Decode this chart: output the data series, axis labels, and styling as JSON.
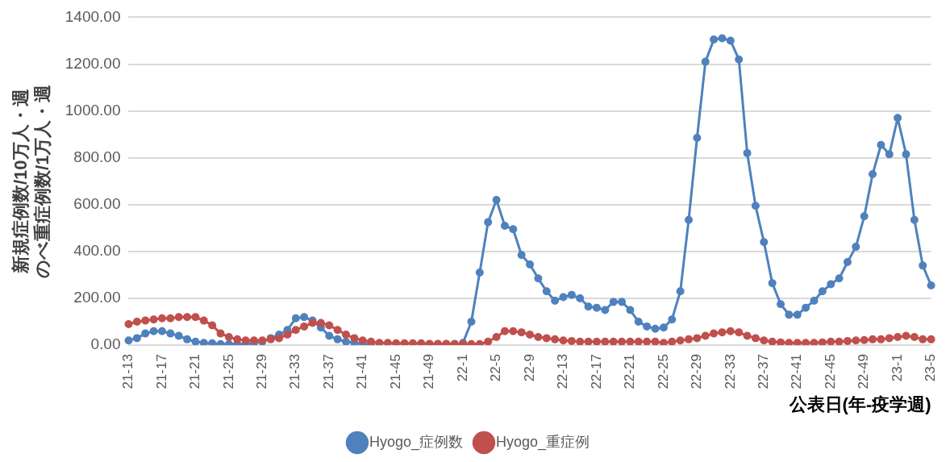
{
  "chart_data": {
    "type": "line",
    "ylabel": "新規症例数/10万人・週のべ重症例数/1万人・週",
    "xlabel": "公表日(年-疫学週)",
    "categories": [
      "21-13",
      null,
      null,
      null,
      "21-17",
      null,
      null,
      null,
      "21-21",
      null,
      null,
      null,
      "21-25",
      null,
      null,
      null,
      "21-29",
      null,
      null,
      null,
      "21-33",
      null,
      null,
      null,
      "21-37",
      null,
      null,
      null,
      "21-41",
      null,
      null,
      null,
      "21-45",
      null,
      null,
      null,
      "21-49",
      null,
      null,
      null,
      "22-1",
      null,
      null,
      null,
      "22-5",
      null,
      null,
      null,
      "22-9",
      null,
      null,
      null,
      "22-13",
      null,
      null,
      null,
      "22-17",
      null,
      null,
      null,
      "22-21",
      null,
      null,
      null,
      "22-25",
      null,
      null,
      null,
      "22-29",
      null,
      null,
      null,
      "22-33",
      null,
      null,
      null,
      "22-37",
      null,
      null,
      null,
      "22-41",
      null,
      null,
      null,
      "22-45",
      null,
      null,
      null,
      "22-49",
      null,
      null,
      null,
      "23-1",
      null,
      null,
      null,
      "23-5"
    ],
    "series": [
      {
        "name": "Hyogo_症例数",
        "color": "#4f81bd",
        "values": [
          20,
          30,
          50,
          60,
          60,
          50,
          40,
          25,
          15,
          10,
          8,
          5,
          5,
          5,
          5,
          10,
          15,
          30,
          45,
          65,
          115,
          120,
          105,
          75,
          40,
          25,
          15,
          10,
          5,
          5,
          null,
          null,
          null,
          null,
          null,
          null,
          null,
          null,
          null,
          null,
          10,
          100,
          310,
          525,
          620,
          510,
          495,
          385,
          345,
          285,
          230,
          190,
          205,
          215,
          200,
          165,
          160,
          150,
          185,
          185,
          150,
          100,
          80,
          70,
          75,
          110,
          230,
          535,
          885,
          1210,
          1305,
          1310,
          1300,
          1220,
          820,
          595,
          440,
          265,
          175,
          130,
          130,
          160,
          190,
          230,
          260,
          285,
          355,
          420,
          550,
          730,
          855,
          815,
          970,
          815,
          535,
          340,
          255
        ]
      },
      {
        "name": "Hyogo_重症例",
        "color": "#c0504d",
        "values": [
          90,
          100,
          105,
          110,
          115,
          115,
          120,
          120,
          120,
          105,
          85,
          50,
          35,
          25,
          20,
          20,
          20,
          25,
          30,
          45,
          65,
          80,
          95,
          95,
          85,
          65,
          45,
          30,
          20,
          15,
          10,
          10,
          8,
          8,
          8,
          8,
          6,
          6,
          6,
          6,
          5,
          5,
          5,
          15,
          35,
          60,
          60,
          55,
          45,
          35,
          30,
          25,
          20,
          18,
          15,
          15,
          15,
          15,
          15,
          15,
          15,
          15,
          15,
          15,
          10,
          15,
          20,
          25,
          30,
          40,
          50,
          55,
          60,
          55,
          40,
          30,
          20,
          15,
          12,
          10,
          10,
          10,
          10,
          12,
          15,
          15,
          18,
          20,
          22,
          25,
          25,
          30,
          35,
          40,
          35,
          25,
          25
        ]
      }
    ],
    "ylim": [
      0,
      1400
    ],
    "yticks": [
      {
        "value": 0,
        "label": "0.00"
      },
      {
        "value": 200,
        "label": "200.00"
      },
      {
        "value": 400,
        "label": "400.00"
      },
      {
        "value": 600,
        "label": "600.00"
      },
      {
        "value": 800,
        "label": "800.00"
      },
      {
        "value": 1000,
        "label": "1000.00"
      },
      {
        "value": 1200,
        "label": "1200.00"
      },
      {
        "value": 1400,
        "label": "1400.00"
      }
    ],
    "grid": "y",
    "legend": "bottom",
    "marker": "circle",
    "line_style": "solid"
  }
}
